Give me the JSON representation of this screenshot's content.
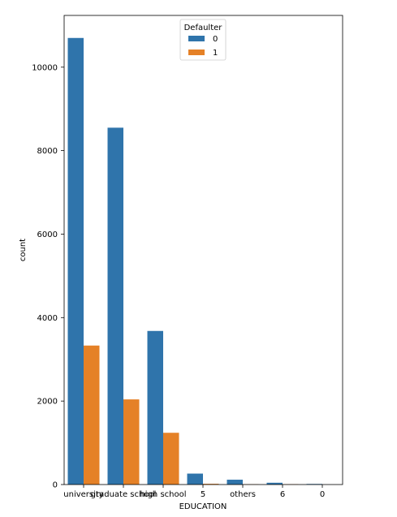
{
  "chart_data": {
    "type": "bar",
    "xlabel": "EDUCATION",
    "ylabel": "count",
    "categories": [
      "university",
      "graduate school",
      "high school",
      "5",
      "others",
      "6",
      "0"
    ],
    "series": [
      {
        "name": "0",
        "color": "#2f74ab",
        "values": [
          10700,
          8550,
          3680,
          262,
          116,
          43,
          14
        ]
      },
      {
        "name": "1",
        "color": "#e58127",
        "values": [
          3330,
          2040,
          1240,
          18,
          7,
          8,
          0
        ]
      }
    ],
    "ylim": [
      0,
      11240
    ],
    "yticks": [
      0,
      2000,
      4000,
      6000,
      8000,
      10000
    ],
    "legend": {
      "title": "Defaulter",
      "placement": "top-center"
    },
    "grid": false
  }
}
